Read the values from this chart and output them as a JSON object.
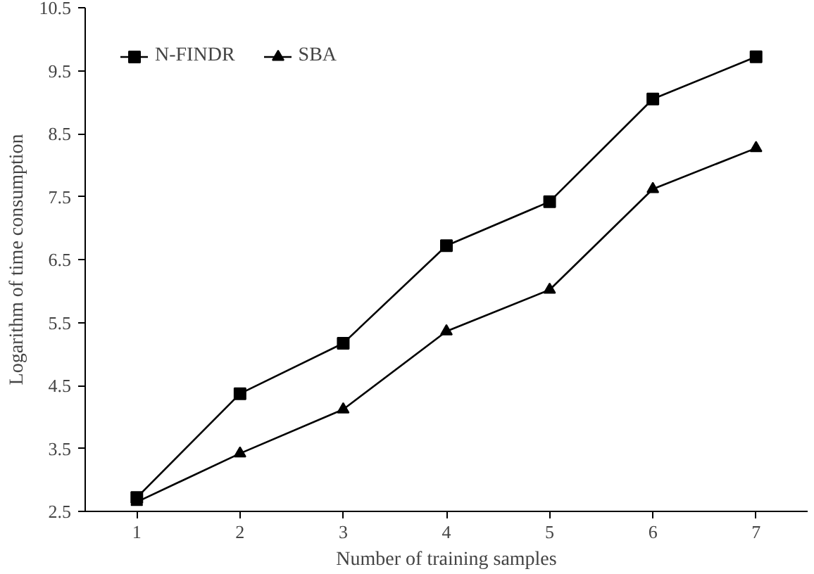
{
  "chart_data": {
    "type": "line",
    "xlabel": "Number of training samples",
    "ylabel": "Logarithm of time consumption",
    "x": [
      1,
      2,
      3,
      4,
      5,
      6,
      7
    ],
    "xlim": [
      0.5,
      7.5
    ],
    "xticks": [
      1,
      2,
      3,
      4,
      5,
      6,
      7
    ],
    "ylim": [
      2.5,
      10.5
    ],
    "yticks": [
      2.5,
      3.5,
      4.5,
      5.5,
      6.5,
      7.5,
      8.5,
      9.5,
      10.5
    ],
    "series": [
      {
        "name": "N-FINDR",
        "color": "#000000",
        "marker": "square",
        "values": [
          2.72,
          4.37,
          5.17,
          6.72,
          7.42,
          9.05,
          9.72
        ]
      },
      {
        "name": "SBA",
        "color": "#000000",
        "marker": "triangle",
        "values": [
          2.65,
          3.42,
          4.12,
          5.36,
          6.02,
          7.62,
          8.27
        ]
      }
    ],
    "legend": "top left",
    "grid": false,
    "line_style": "solid"
  }
}
